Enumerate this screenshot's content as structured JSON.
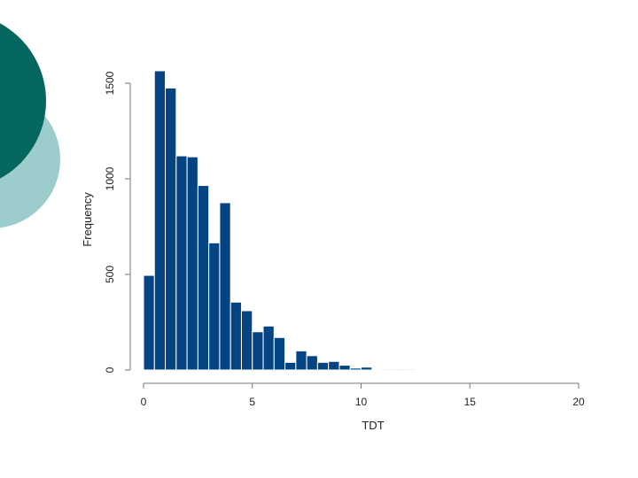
{
  "colors": {
    "bar_fill": "#054483",
    "bar_edge": "#ffffff",
    "axis": "#777777",
    "decor_dark": "#05665f",
    "decor_light": "#9ccdcc"
  },
  "chart_data": {
    "type": "bar",
    "title": "",
    "xlabel": "TDT",
    "ylabel": "Frequency",
    "xlim": [
      0,
      20
    ],
    "ylim": [
      0,
      1500
    ],
    "bin_width": 0.5,
    "x_ticks": [
      0,
      5,
      10,
      15,
      20
    ],
    "y_ticks": [
      0,
      500,
      1000,
      1500
    ],
    "bin_starts": [
      0,
      0.5,
      1,
      1.5,
      2,
      2.5,
      3,
      3.5,
      4,
      4.5,
      5,
      5.5,
      6,
      6.5,
      7,
      7.5,
      8,
      8.5,
      9,
      9.5,
      10,
      10.5,
      11,
      11.5,
      12
    ],
    "values": [
      495,
      1565,
      1475,
      1120,
      1115,
      965,
      665,
      875,
      355,
      310,
      200,
      230,
      170,
      40,
      100,
      75,
      40,
      45,
      25,
      10,
      15,
      0,
      5,
      5,
      5
    ],
    "grid": false,
    "legend": "none"
  }
}
